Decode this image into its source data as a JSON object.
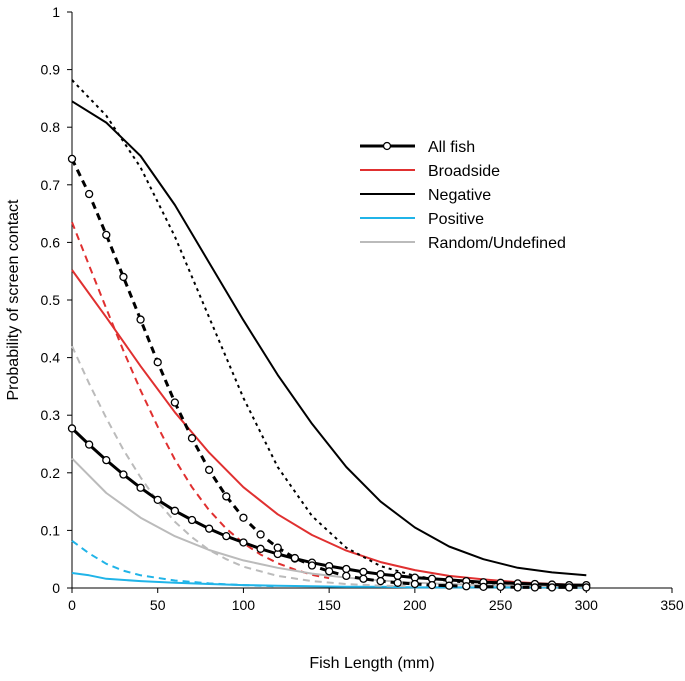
{
  "chart_data": {
    "type": "line",
    "title": "",
    "xlabel": "Fish Length (mm)",
    "ylabel": "Probability of screen contact",
    "xlim": [
      0,
      350
    ],
    "ylim": [
      0,
      1
    ],
    "x_ticks": [
      0,
      50,
      100,
      150,
      200,
      250,
      300,
      350
    ],
    "y_ticks": [
      0,
      0.1,
      0.2,
      0.3,
      0.4,
      0.5,
      0.6,
      0.7,
      0.8,
      0.9,
      1
    ],
    "grid": false,
    "legend_position": "top-right",
    "legend": [
      {
        "label": "All fish",
        "color": "#000000",
        "style": "solid-markers"
      },
      {
        "label": "Broadside",
        "color": "#e03030",
        "style": "solid"
      },
      {
        "label": "Negative",
        "color": "#000000",
        "style": "solid"
      },
      {
        "label": "Positive",
        "color": "#20b4e8",
        "style": "solid"
      },
      {
        "label": "Random/Undefined",
        "color": "#bbbbbb",
        "style": "solid"
      }
    ],
    "series": [
      {
        "name": "All fish",
        "color": "#000000",
        "dash": "solid",
        "markers": true,
        "x": [
          0,
          10,
          20,
          30,
          40,
          50,
          60,
          70,
          80,
          90,
          100,
          110,
          120,
          130,
          140,
          150,
          160,
          170,
          180,
          190,
          200,
          210,
          220,
          230,
          240,
          250,
          260,
          270,
          280,
          290,
          300
        ],
        "y": [
          0.277,
          0.249,
          0.222,
          0.197,
          0.174,
          0.153,
          0.134,
          0.118,
          0.103,
          0.09,
          0.079,
          0.068,
          0.059,
          0.051,
          0.044,
          0.038,
          0.033,
          0.028,
          0.024,
          0.021,
          0.018,
          0.016,
          0.014,
          0.012,
          0.01,
          0.009,
          0.008,
          0.007,
          0.006,
          0.005,
          0.005
        ]
      },
      {
        "name": "",
        "color": "#000000",
        "dash": "dashed",
        "markers": true,
        "x": [
          0,
          10,
          20,
          30,
          40,
          50,
          60,
          70,
          80,
          90,
          100,
          110,
          120,
          130,
          140,
          150,
          160,
          170,
          180,
          190,
          200,
          210,
          220,
          230,
          240,
          250,
          260,
          270,
          280,
          290,
          300
        ],
        "y": [
          0.745,
          0.684,
          0.613,
          0.54,
          0.466,
          0.392,
          0.322,
          0.26,
          0.205,
          0.159,
          0.122,
          0.093,
          0.07,
          0.052,
          0.039,
          0.029,
          0.021,
          0.016,
          0.012,
          0.009,
          0.007,
          0.005,
          0.004,
          0.003,
          0.002,
          0.002,
          0.001,
          0.001,
          0.001,
          0.001,
          0.001
        ]
      },
      {
        "name": "Broadside",
        "color": "#e03030",
        "dash": "solid",
        "markers": false,
        "x": [
          0,
          20,
          40,
          60,
          80,
          100,
          120,
          140,
          160,
          180,
          200,
          220,
          240,
          260,
          280,
          300
        ],
        "y": [
          0.552,
          0.47,
          0.385,
          0.305,
          0.235,
          0.175,
          0.128,
          0.092,
          0.065,
          0.045,
          0.031,
          0.021,
          0.015,
          0.01,
          0.007,
          0.005
        ]
      },
      {
        "name": "",
        "color": "#e03030",
        "dash": "dashed",
        "markers": false,
        "x": [
          0,
          10,
          20,
          30,
          40,
          50,
          60,
          70,
          80,
          90,
          100,
          110,
          120,
          130,
          140,
          150
        ],
        "y": [
          0.635,
          0.56,
          0.485,
          0.412,
          0.343,
          0.28,
          0.223,
          0.175,
          0.135,
          0.103,
          0.078,
          0.058,
          0.043,
          0.032,
          0.023,
          0.017
        ]
      },
      {
        "name": "Negative",
        "color": "#000000",
        "dash": "solid",
        "markers": false,
        "x": [
          0,
          20,
          40,
          60,
          80,
          100,
          120,
          140,
          160,
          180,
          200,
          220,
          240,
          260,
          280,
          300
        ],
        "y": [
          0.845,
          0.808,
          0.75,
          0.665,
          0.565,
          0.465,
          0.37,
          0.285,
          0.21,
          0.15,
          0.105,
          0.072,
          0.05,
          0.035,
          0.027,
          0.022
        ]
      },
      {
        "name": "",
        "color": "#000000",
        "dash": "dotted",
        "markers": false,
        "x": [
          0,
          20,
          40,
          60,
          80,
          100,
          120,
          140,
          160,
          180,
          200,
          220,
          240,
          260,
          280,
          300
        ],
        "y": [
          0.882,
          0.82,
          0.73,
          0.61,
          0.47,
          0.33,
          0.21,
          0.125,
          0.07,
          0.038,
          0.021,
          0.012,
          0.007,
          0.004,
          0.003,
          0.002
        ]
      },
      {
        "name": "Positive",
        "color": "#20b4e8",
        "dash": "solid",
        "markers": false,
        "x": [
          0,
          10,
          20,
          40,
          60,
          80,
          100,
          120,
          140,
          160,
          180,
          200,
          220,
          240,
          260,
          280,
          300
        ],
        "y": [
          0.026,
          0.022,
          0.016,
          0.012,
          0.009,
          0.007,
          0.005,
          0.004,
          0.003,
          0.002,
          0.002,
          0.001,
          0.001,
          0.001,
          0.001,
          0.001,
          0.001
        ]
      },
      {
        "name": "",
        "color": "#20b4e8",
        "dash": "dashed",
        "markers": false,
        "x": [
          0,
          10,
          20,
          30,
          40,
          60,
          80,
          100,
          120
        ],
        "y": [
          0.082,
          0.06,
          0.042,
          0.03,
          0.022,
          0.013,
          0.008,
          0.005,
          0.003
        ]
      },
      {
        "name": "Random/Undefined",
        "color": "#bbbbbb",
        "dash": "solid",
        "markers": false,
        "x": [
          0,
          20,
          40,
          60,
          80,
          100,
          120,
          140,
          160,
          180,
          200,
          220,
          240,
          260,
          280,
          300
        ],
        "y": [
          0.225,
          0.165,
          0.122,
          0.09,
          0.066,
          0.048,
          0.035,
          0.025,
          0.018,
          0.013,
          0.009,
          0.007,
          0.005,
          0.004,
          0.003,
          0.002
        ]
      },
      {
        "name": "",
        "color": "#bbbbbb",
        "dash": "dashed",
        "markers": false,
        "x": [
          0,
          10,
          20,
          30,
          40,
          50,
          60,
          70,
          80,
          90,
          100,
          120,
          140,
          160,
          180,
          200
        ],
        "y": [
          0.42,
          0.355,
          0.295,
          0.24,
          0.192,
          0.15,
          0.115,
          0.088,
          0.066,
          0.05,
          0.037,
          0.021,
          0.012,
          0.007,
          0.004,
          0.003
        ]
      }
    ]
  }
}
